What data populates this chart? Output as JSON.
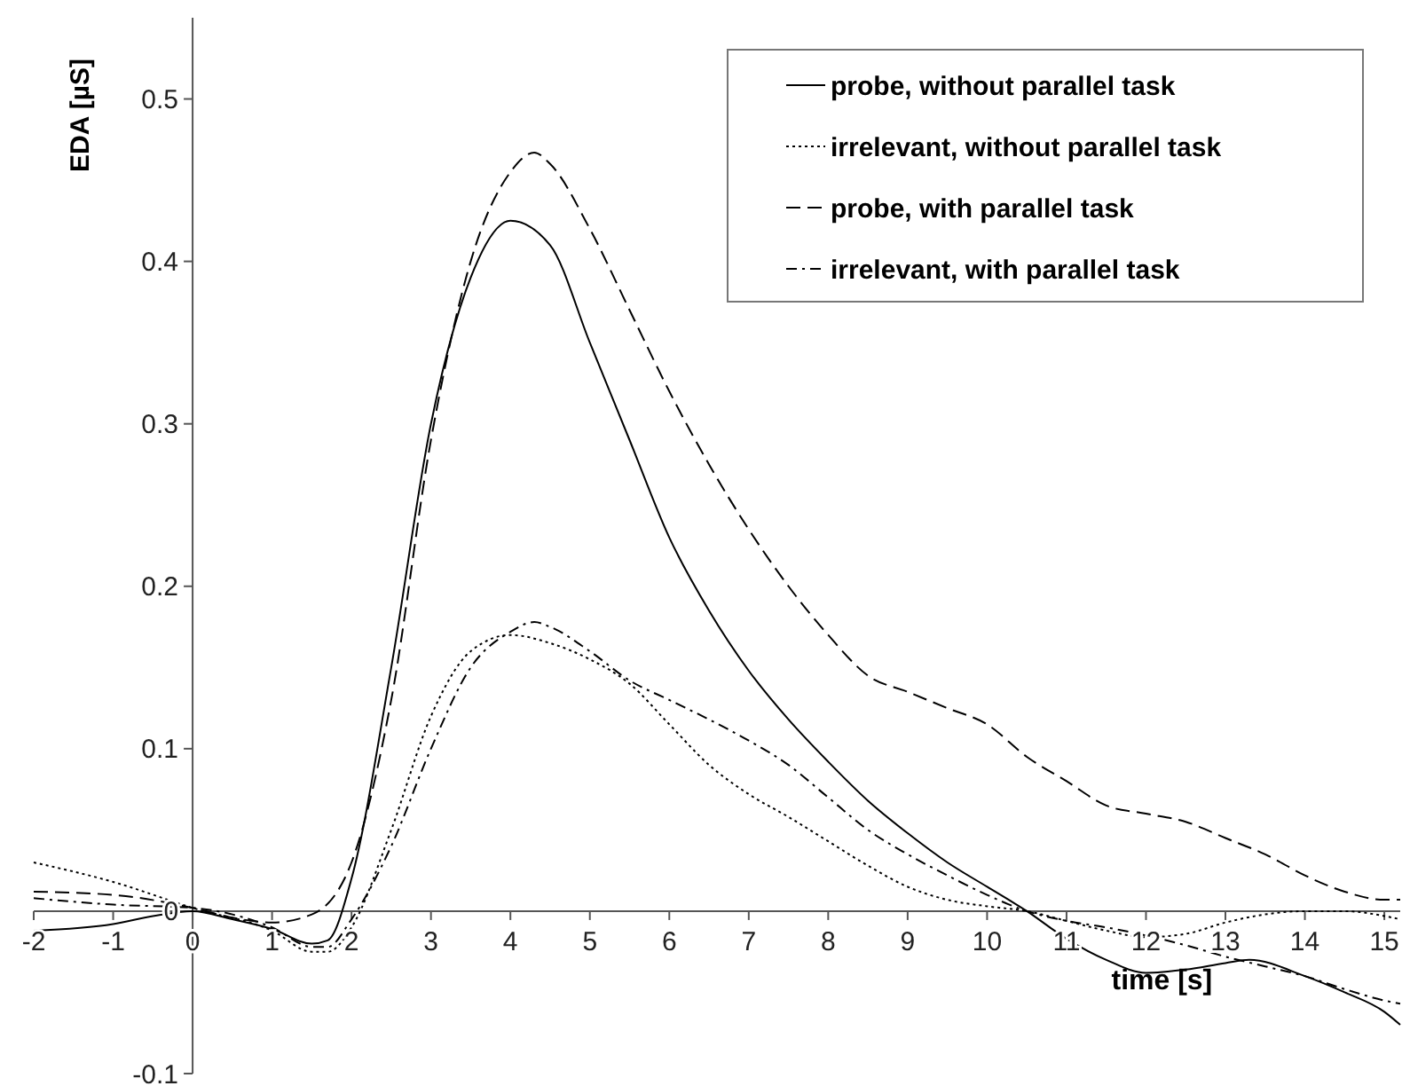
{
  "chart_data": {
    "type": "line",
    "xlabel": "time [s]",
    "ylabel": "EDA [µS]",
    "xlim": [
      -2,
      15.2
    ],
    "ylim": [
      -0.1,
      0.55
    ],
    "xticks": [
      -2,
      -1,
      0,
      1,
      2,
      3,
      4,
      5,
      6,
      7,
      8,
      9,
      10,
      11,
      12,
      13,
      14,
      15
    ],
    "yticks": [
      -0.1,
      0,
      0.1,
      0.2,
      0.3,
      0.4,
      0.5
    ],
    "grid": false,
    "legend": "top right",
    "marker": "none",
    "series": [
      {
        "name": "probe, without parallel task",
        "color": "#000000",
        "line_style": "solid",
        "x": [
          -2,
          -1,
          -0.5,
          0,
          0.5,
          1,
          1.5,
          1.7,
          2,
          2.5,
          3,
          3.5,
          4,
          4.5,
          5,
          5.5,
          6,
          6.5,
          7,
          7.5,
          8,
          8.5,
          9,
          9.5,
          10,
          10.5,
          11,
          11.5,
          12,
          12.5,
          13,
          13.3,
          14,
          14.5,
          15,
          15.2
        ],
        "values": [
          -0.012,
          -0.008,
          -0.003,
          0,
          -0.005,
          -0.011,
          -0.02,
          -0.018,
          0.02,
          0.15,
          0.3,
          0.39,
          0.425,
          0.41,
          0.35,
          0.29,
          0.23,
          0.185,
          0.148,
          0.118,
          0.092,
          0.068,
          0.048,
          0.03,
          0.015,
          0,
          -0.017,
          -0.03,
          -0.038,
          -0.036,
          -0.032,
          -0.03,
          -0.04,
          -0.05,
          -0.062,
          -0.07
        ]
      },
      {
        "name": "irrelevant, without parallel task",
        "color": "#000000",
        "line_style": "dotted",
        "x": [
          -2,
          -1,
          0,
          1,
          1.5,
          1.7,
          2,
          2.5,
          3,
          3.5,
          4,
          4.5,
          5,
          5.5,
          6,
          6.5,
          7,
          7.5,
          8,
          8.5,
          9,
          9.5,
          10,
          10.5,
          11,
          11.5,
          12,
          12.5,
          13,
          13.5,
          14,
          14.5,
          15,
          15.2
        ],
        "values": [
          0.03,
          0.018,
          0.002,
          -0.012,
          -0.025,
          -0.025,
          -0.01,
          0.05,
          0.12,
          0.16,
          0.17,
          0.165,
          0.155,
          0.14,
          0.115,
          0.09,
          0.072,
          0.058,
          0.043,
          0.028,
          0.015,
          0.007,
          0.003,
          0,
          -0.006,
          -0.012,
          -0.016,
          -0.014,
          -0.007,
          -0.002,
          0,
          0,
          -0.003,
          -0.005
        ]
      },
      {
        "name": "probe, with parallel task",
        "color": "#000000",
        "line_style": "dashed",
        "x": [
          -2,
          -1,
          0,
          0.5,
          1,
          1.5,
          2,
          2.5,
          3,
          3.5,
          4,
          4.3,
          4.5,
          5,
          5.5,
          6,
          6.5,
          7,
          7.5,
          8,
          8.5,
          9,
          9.5,
          10,
          10.5,
          11,
          11.5,
          12,
          12.5,
          13,
          13.5,
          14,
          14.5,
          15,
          15.2
        ],
        "values": [
          0.012,
          0.01,
          0.002,
          -0.004,
          -0.007,
          -0.002,
          0.03,
          0.13,
          0.29,
          0.4,
          0.455,
          0.467,
          0.46,
          0.42,
          0.37,
          0.32,
          0.275,
          0.235,
          0.2,
          0.17,
          0.145,
          0.135,
          0.125,
          0.115,
          0.095,
          0.08,
          0.065,
          0.06,
          0.055,
          0.045,
          0.035,
          0.022,
          0.012,
          0.007,
          0.007
        ]
      },
      {
        "name": "irrelevant, with parallel task",
        "color": "#000000",
        "line_style": "dashdot",
        "x": [
          -2,
          -1,
          0,
          1,
          1.5,
          1.7,
          2,
          2.5,
          3,
          3.5,
          4,
          4.3,
          4.5,
          5,
          5.5,
          6,
          6.5,
          7,
          7.5,
          8,
          8.5,
          9,
          9.5,
          10,
          10.5,
          11,
          11.5,
          12,
          12.5,
          13,
          13.5,
          14,
          14.5,
          15,
          15.2
        ],
        "values": [
          0.008,
          0.004,
          0.002,
          -0.01,
          -0.022,
          -0.022,
          -0.005,
          0.04,
          0.1,
          0.15,
          0.172,
          0.178,
          0.175,
          0.16,
          0.142,
          0.13,
          0.118,
          0.105,
          0.09,
          0.07,
          0.05,
          0.035,
          0.022,
          0.01,
          0,
          -0.006,
          -0.01,
          -0.015,
          -0.021,
          -0.028,
          -0.034,
          -0.04,
          -0.048,
          -0.055,
          -0.057
        ]
      }
    ]
  }
}
